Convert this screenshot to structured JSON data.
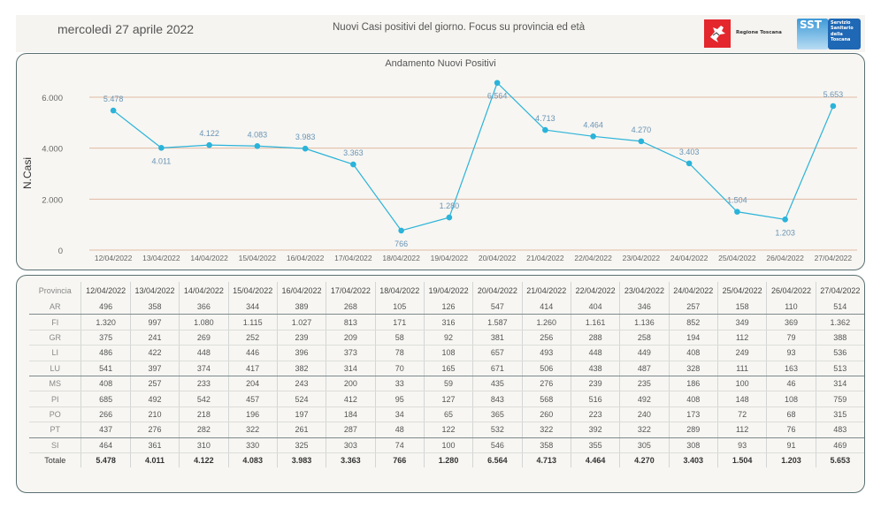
{
  "header": {
    "date": "mercoledì 27 aprile 2022",
    "title": "Nuovi Casi positivi del giorno. Focus su provincia ed età",
    "logo_regione": "Regione Toscana",
    "logo_sst": "SST",
    "logo_sst_text": [
      "Servizio",
      "Sanitario",
      "della",
      "Toscana"
    ]
  },
  "colors": {
    "line": "#2bb3d9",
    "grid": "#e2b9a1",
    "label": "#6a94b5"
  },
  "chart_data": {
    "type": "line",
    "title": "Andamento Nuovi Positivi",
    "xlabel": "",
    "ylabel": "N.Casi",
    "ylim": [
      0,
      6800
    ],
    "yticks": [
      0,
      2000,
      4000,
      6000
    ],
    "ytick_labels": [
      "0",
      "2.000",
      "4.000",
      "6.000"
    ],
    "grid": true,
    "categories": [
      "12/04/2022",
      "13/04/2022",
      "14/04/2022",
      "15/04/2022",
      "16/04/2022",
      "17/04/2022",
      "18/04/2022",
      "19/04/2022",
      "20/04/2022",
      "21/04/2022",
      "22/04/2022",
      "23/04/2022",
      "24/04/2022",
      "25/04/2022",
      "26/04/2022",
      "27/04/2022"
    ],
    "values": [
      5478,
      4011,
      4122,
      4083,
      3983,
      3363,
      766,
      1280,
      6564,
      4713,
      4464,
      4270,
      3403,
      1504,
      1203,
      5653
    ],
    "value_labels": [
      "5.478",
      "4.011",
      "4.122",
      "4.083",
      "3.983",
      "3.363",
      "766",
      "1.280",
      "6.564",
      "4.713",
      "4.464",
      "4.270",
      "3.403",
      "1.504",
      "1.203",
      "5.653"
    ],
    "label_position": [
      "above",
      "below",
      "above",
      "above",
      "above",
      "above",
      "below",
      "above",
      "below",
      "above",
      "above",
      "above",
      "above",
      "above",
      "below",
      "above"
    ]
  },
  "table": {
    "header": [
      "Provincia",
      "12/04/2022",
      "13/04/2022",
      "14/04/2022",
      "15/04/2022",
      "16/04/2022",
      "17/04/2022",
      "18/04/2022",
      "19/04/2022",
      "20/04/2022",
      "21/04/2022",
      "22/04/2022",
      "23/04/2022",
      "24/04/2022",
      "25/04/2022",
      "26/04/2022",
      "27/04/2022"
    ],
    "rows": [
      [
        "AR",
        "496",
        "358",
        "366",
        "344",
        "389",
        "268",
        "105",
        "126",
        "547",
        "414",
        "404",
        "346",
        "257",
        "158",
        "110",
        "514"
      ],
      [
        "FI",
        "1.320",
        "997",
        "1.080",
        "1.115",
        "1.027",
        "813",
        "171",
        "316",
        "1.587",
        "1.260",
        "1.161",
        "1.136",
        "852",
        "349",
        "369",
        "1.362"
      ],
      [
        "GR",
        "375",
        "241",
        "269",
        "252",
        "239",
        "209",
        "58",
        "92",
        "381",
        "256",
        "288",
        "258",
        "194",
        "112",
        "79",
        "388"
      ],
      [
        "LI",
        "486",
        "422",
        "448",
        "446",
        "396",
        "373",
        "78",
        "108",
        "657",
        "493",
        "448",
        "449",
        "408",
        "249",
        "93",
        "536"
      ],
      [
        "LU",
        "541",
        "397",
        "374",
        "417",
        "382",
        "314",
        "70",
        "165",
        "671",
        "506",
        "438",
        "487",
        "328",
        "111",
        "163",
        "513"
      ],
      [
        "MS",
        "408",
        "257",
        "233",
        "204",
        "243",
        "200",
        "33",
        "59",
        "435",
        "276",
        "239",
        "235",
        "186",
        "100",
        "46",
        "314"
      ],
      [
        "PI",
        "685",
        "492",
        "542",
        "457",
        "524",
        "412",
        "95",
        "127",
        "843",
        "568",
        "516",
        "492",
        "408",
        "148",
        "108",
        "759"
      ],
      [
        "PO",
        "266",
        "210",
        "218",
        "196",
        "197",
        "184",
        "34",
        "65",
        "365",
        "260",
        "223",
        "240",
        "173",
        "72",
        "68",
        "315"
      ],
      [
        "PT",
        "437",
        "276",
        "282",
        "322",
        "261",
        "287",
        "48",
        "122",
        "532",
        "322",
        "392",
        "322",
        "289",
        "112",
        "76",
        "483"
      ],
      [
        "SI",
        "464",
        "361",
        "310",
        "330",
        "325",
        "303",
        "74",
        "100",
        "546",
        "358",
        "355",
        "305",
        "308",
        "93",
        "91",
        "469"
      ]
    ],
    "total": [
      "Totale",
      "5.478",
      "4.011",
      "4.122",
      "4.083",
      "3.983",
      "3.363",
      "766",
      "1.280",
      "6.564",
      "4.713",
      "4.464",
      "4.270",
      "3.403",
      "1.504",
      "1.203",
      "5.653"
    ]
  }
}
